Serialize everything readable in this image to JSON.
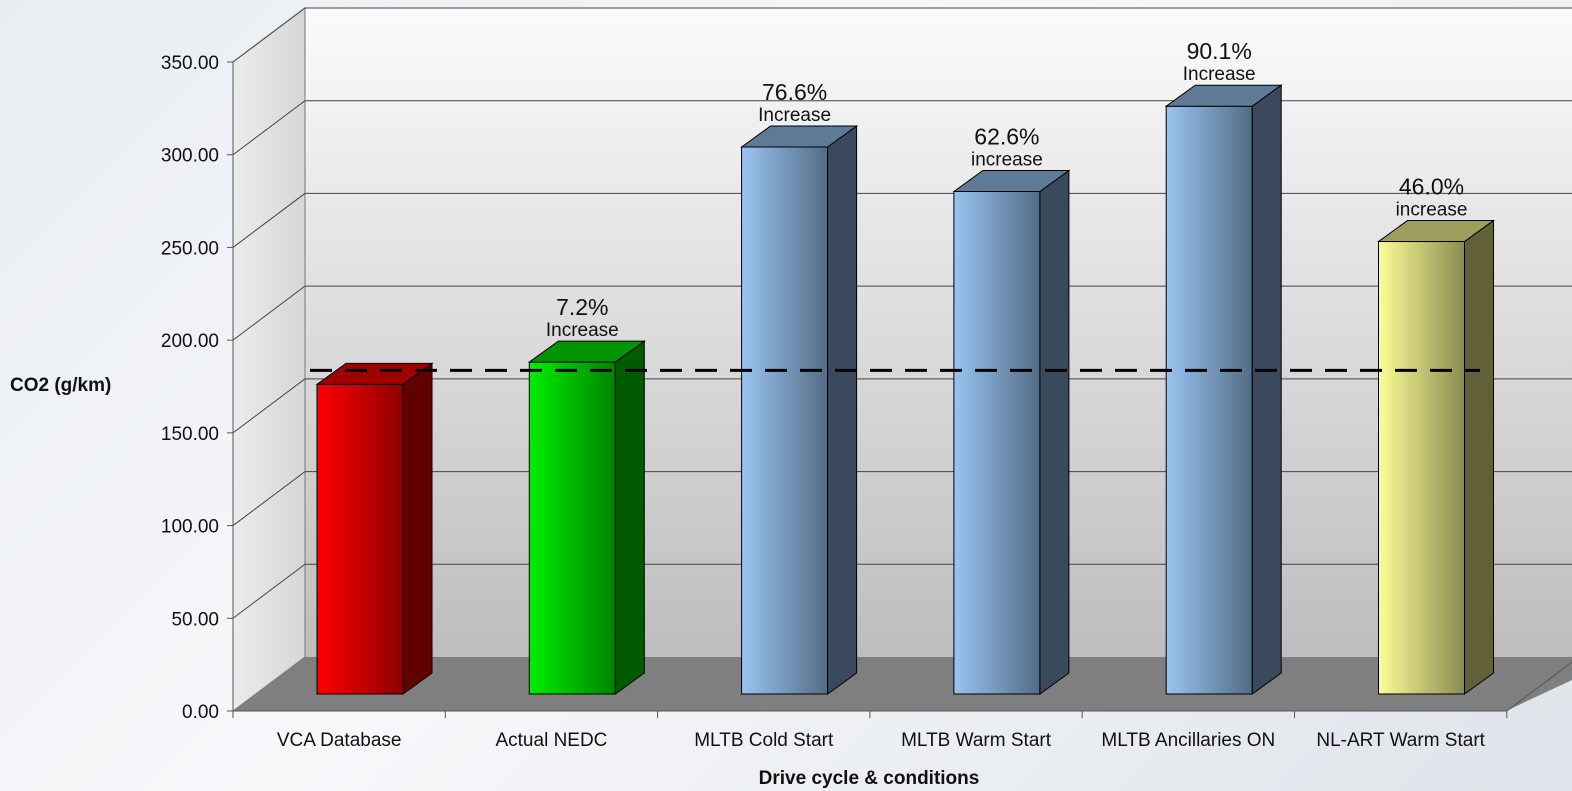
{
  "chart_data": {
    "type": "bar",
    "title": "",
    "xlabel": "Drive cycle & conditions",
    "ylabel": "CO2 (g/km)",
    "ylim": [
      0,
      350
    ],
    "yticks": [
      "0.00",
      "50.00",
      "100.00",
      "150.00",
      "200.00",
      "250.00",
      "300.00",
      "350.00"
    ],
    "categories": [
      "VCA Database",
      "Actual NEDC",
      "MLTB Cold Start",
      "MLTB Warm Start",
      "MLTB Ancillaries ON",
      "NL-ART Warm Start"
    ],
    "values": [
      167,
      179,
      295,
      271,
      317,
      244
    ],
    "grid": true,
    "legend": "none",
    "reference_line": {
      "value": 167,
      "style": "dashed",
      "color": "#000000"
    },
    "annotations": [
      {
        "category": "Actual NEDC",
        "percent": "7.2%",
        "word": "Increase"
      },
      {
        "category": "MLTB Cold Start",
        "percent": "76.6%",
        "word": "Increase"
      },
      {
        "category": "MLTB Warm Start",
        "percent": "62.6%",
        "word": "increase"
      },
      {
        "category": "MLTB Ancillaries ON",
        "percent": "90.1%",
        "word": "Increase"
      },
      {
        "category": "NL-ART Warm Start",
        "percent": "46.0%",
        "word": "increase"
      }
    ],
    "colors": [
      "#ff0000",
      "#00ee00",
      "#99c4f2",
      "#99c4f2",
      "#99c4f2",
      "#fdfd96"
    ]
  }
}
